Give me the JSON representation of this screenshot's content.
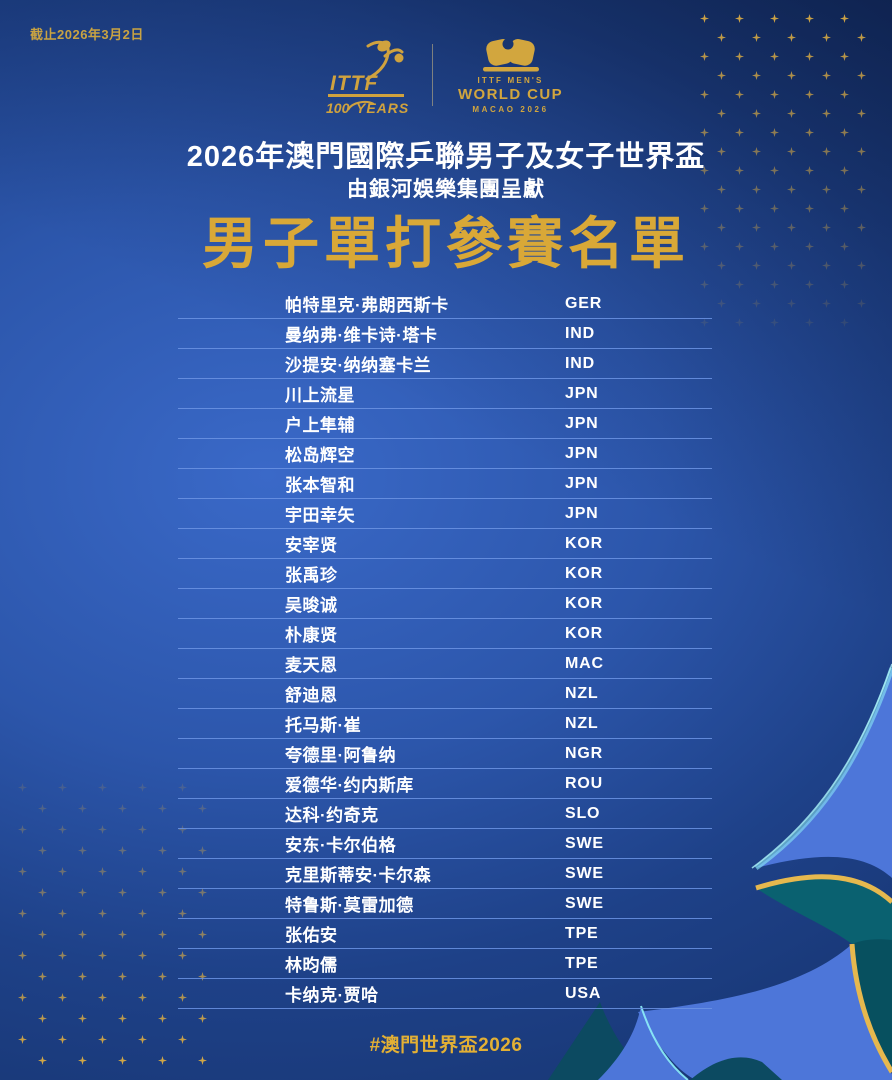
{
  "header": {
    "as_of_date": "截止2026年3月2日",
    "ittf_logo": {
      "name": "ITTF",
      "years_prefix": "100",
      "years_suffix": "YEARS"
    },
    "event_logo": {
      "line1": "ITTF MEN'S",
      "line2": "WORLD CUP",
      "line3": "MACAO 2026"
    },
    "title": "2026年澳門國際乒聯男子及女子世界盃",
    "presenter": "由銀河娛樂集團呈獻",
    "list_title": "男子單打參賽名單"
  },
  "players": [
    {
      "name": "帕特里克·弗朗西斯卡",
      "noc": "GER"
    },
    {
      "name": "曼纳弗·维卡诗·塔卡",
      "noc": "IND"
    },
    {
      "name": "沙提安·纳纳塞卡兰",
      "noc": "IND"
    },
    {
      "name": "川上流星",
      "noc": "JPN"
    },
    {
      "name": "户上隼辅",
      "noc": "JPN"
    },
    {
      "name": "松岛辉空",
      "noc": "JPN"
    },
    {
      "name": "张本智和",
      "noc": "JPN"
    },
    {
      "name": "宇田幸矢",
      "noc": "JPN"
    },
    {
      "name": "安宰贤",
      "noc": "KOR"
    },
    {
      "name": "张禹珍",
      "noc": "KOR"
    },
    {
      "name": "吴晙诚",
      "noc": "KOR"
    },
    {
      "name": "朴康贤",
      "noc": "KOR"
    },
    {
      "name": "麦天恩",
      "noc": "MAC"
    },
    {
      "name": "舒迪恩",
      "noc": "NZL"
    },
    {
      "name": "托马斯·崔",
      "noc": "NZL"
    },
    {
      "name": "夸德里·阿鲁纳",
      "noc": "NGR"
    },
    {
      "name": "爱德华·约内斯库",
      "noc": "ROU"
    },
    {
      "name": "达科·约奇克",
      "noc": "SLO"
    },
    {
      "name": "安东·卡尔伯格",
      "noc": "SWE"
    },
    {
      "name": "克里斯蒂安·卡尔森",
      "noc": "SWE"
    },
    {
      "name": "特鲁斯·莫雷加德",
      "noc": "SWE"
    },
    {
      "name": "张佑安",
      "noc": "TPE"
    },
    {
      "name": "林昀儒",
      "noc": "TPE"
    },
    {
      "name": "卡纳克·贾哈",
      "noc": "USA"
    }
  ],
  "footer": {
    "hashtag": "#澳門世界盃2026"
  },
  "colors": {
    "gold": "#d9a837",
    "white": "#ffffff",
    "divider_blue": "#6c94e4",
    "teal_petal": "#0a6170",
    "light_blue_petal": "#4d76d9",
    "cyan_glow": "#8ef0f8"
  }
}
